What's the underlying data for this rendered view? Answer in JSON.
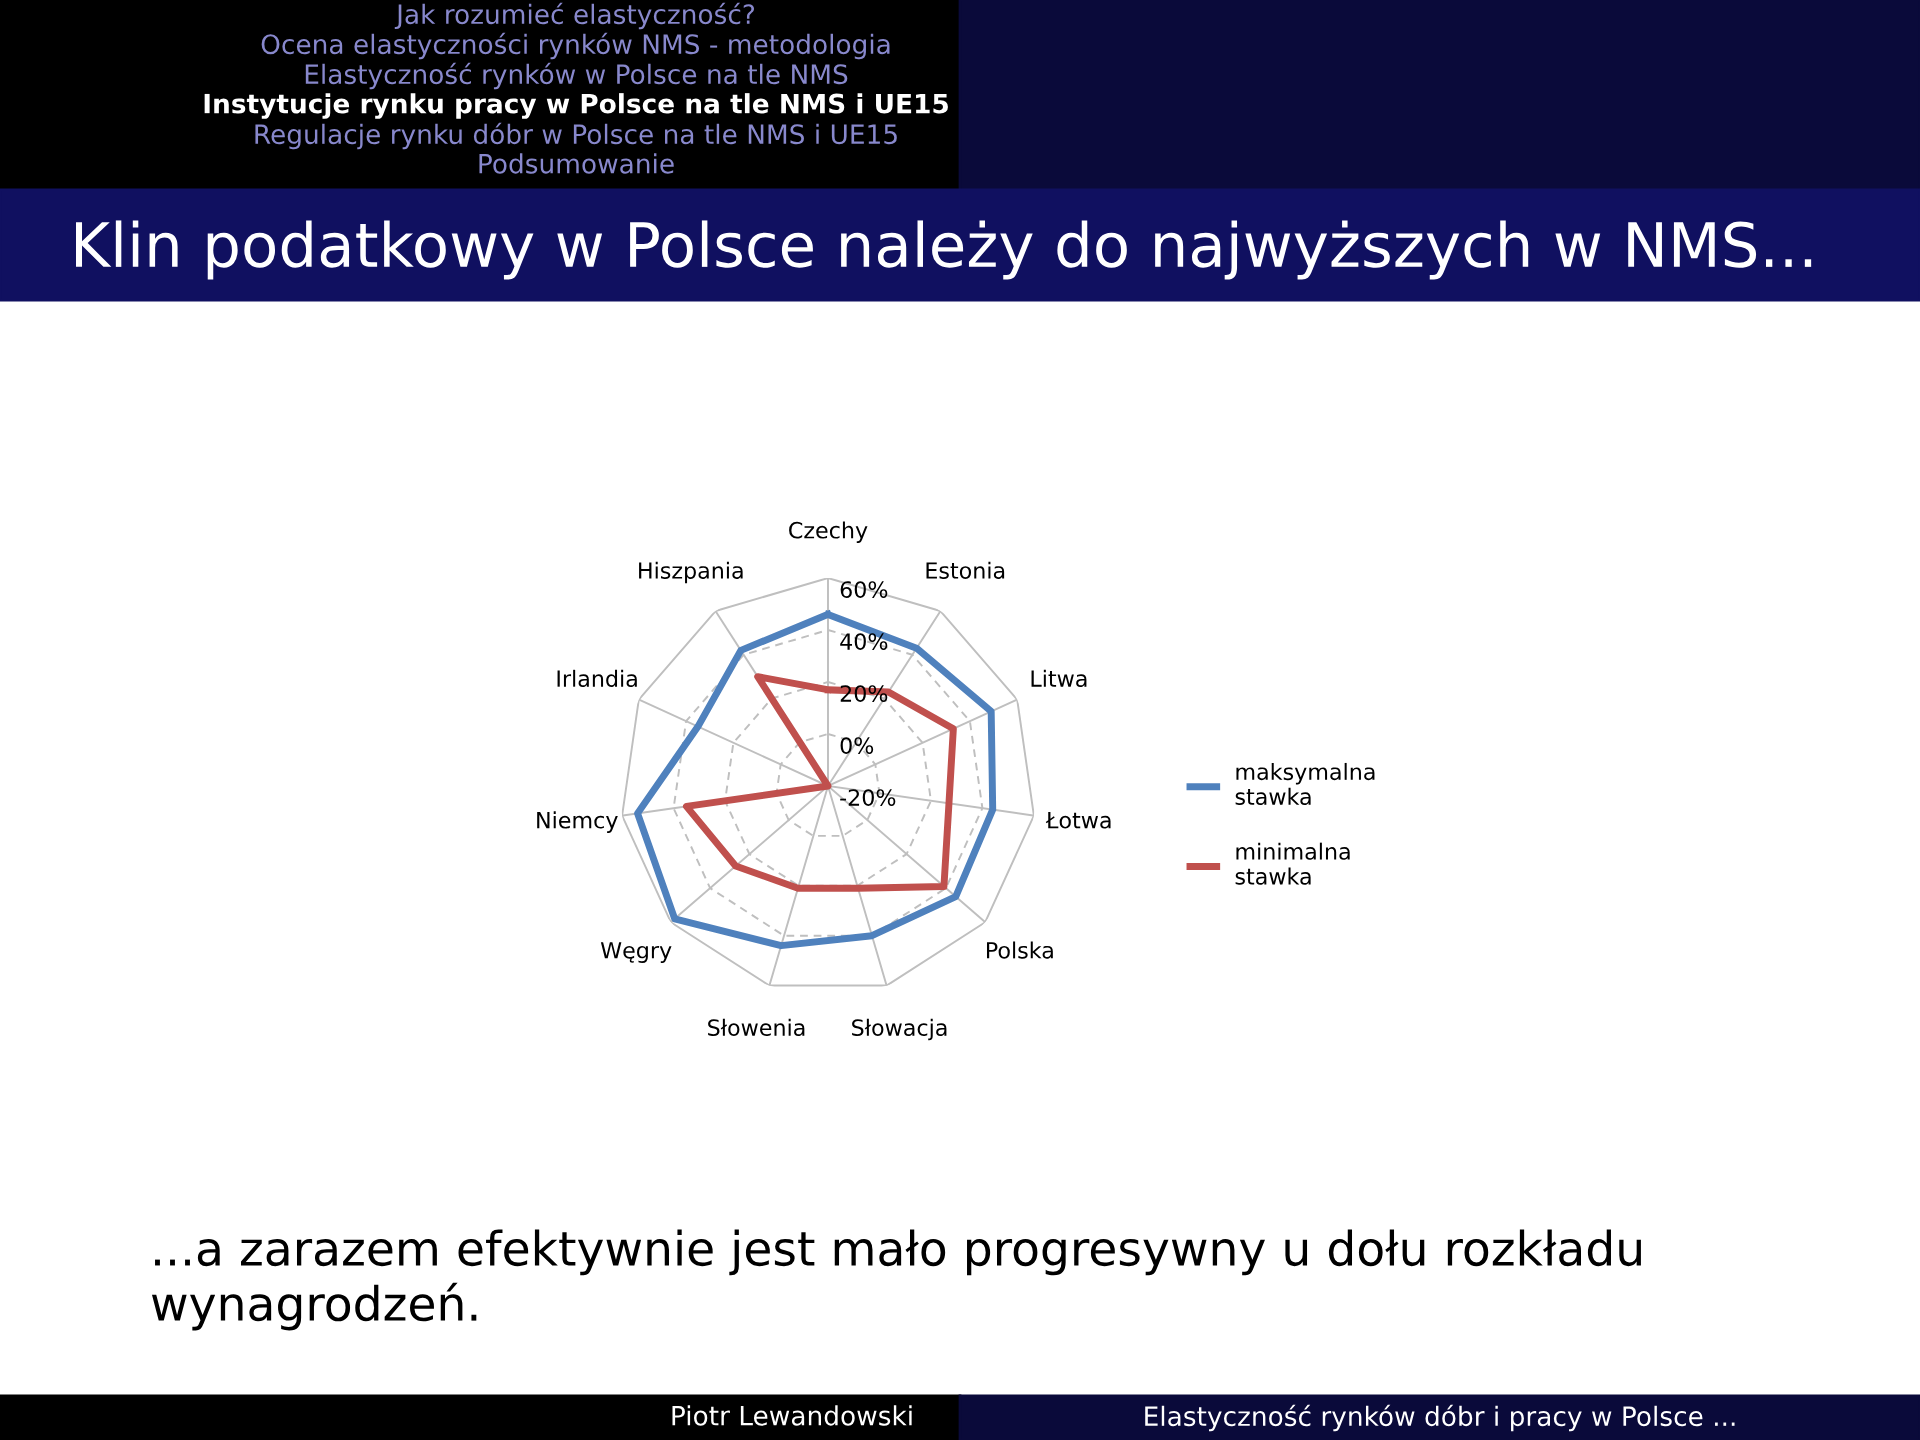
{
  "chart_data": {
    "type": "radar",
    "title": "Klin podatkowy w Polsce należy do najwyższych w NMS...",
    "categories": [
      "Czechy",
      "Estonia",
      "Litwa",
      "Łotwa",
      "Polska",
      "Słowacja",
      "Słowenia",
      "Węgry",
      "Niemcy",
      "Irlandia",
      "Hiszpania"
    ],
    "series": [
      {
        "name": "maksymalna stawka",
        "color": "#4f81bd",
        "values": [
          46,
          43,
          49,
          44,
          45,
          40,
          44,
          58,
          54,
          35,
          42
        ]
      },
      {
        "name": "minimalna stawka",
        "color": "#c0504d",
        "values": [
          17,
          23,
          33,
          27,
          39,
          21,
          21,
          27,
          35,
          -20,
          30
        ]
      }
    ],
    "ylim": [
      -20,
      60
    ],
    "yticks": [
      {
        "value": -20,
        "label": "-20%"
      },
      {
        "value": 0,
        "label": "0%"
      },
      {
        "value": 20,
        "label": "20%"
      },
      {
        "value": 40,
        "label": "40%"
      },
      {
        "value": 60,
        "label": "60%"
      }
    ],
    "grid": true,
    "legend": "right",
    "marker": "none",
    "line_style": "solid",
    "annotations": [
      "Jak rozumieć elastyczność?",
      "Ocena elastyczności rynków NMS - metodologia",
      "Elastyczność rynków w Polsce na tle NMS",
      "Instytucje rynku pracy w Polsce na tle NMS i UE15",
      "Regulacje rynku dóbr w Polsce na tle NMS i UE15",
      "Podsumowanie",
      "...a zarazem efektywnie jest mało progresywny u dołu rozkładu wynagrodzeń.",
      "Piotr Lewandowski",
      "Elastyczność rynków dóbr i pracy w Polsce ..."
    ]
  }
}
